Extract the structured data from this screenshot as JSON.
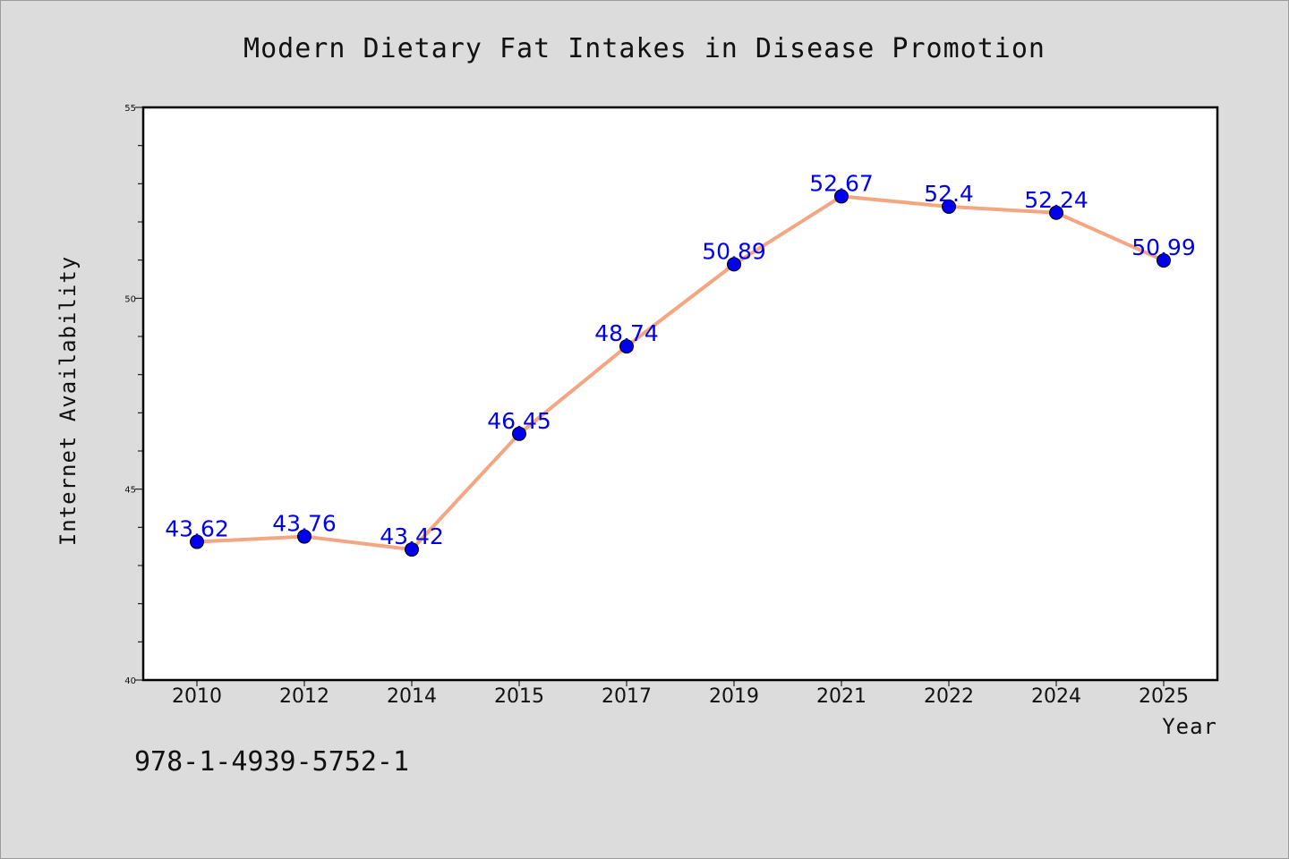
{
  "chart_data": {
    "type": "line",
    "title": "Modern Dietary Fat Intakes in Disease Promotion",
    "xlabel": "Year",
    "ylabel": "Internet Availability",
    "categories": [
      "2010",
      "2012",
      "2014",
      "2015",
      "2017",
      "2019",
      "2021",
      "2022",
      "2024",
      "2025"
    ],
    "series": [
      {
        "values": [
          43.62,
          43.76,
          43.42,
          46.45,
          48.74,
          50.89,
          52.67,
          52.4,
          52.24,
          50.99
        ],
        "labels": [
          "43.62",
          "43.76",
          "43.42",
          "46.45",
          "48.74",
          "50.89",
          "52.67",
          "52.4",
          "52.24",
          "50.99"
        ]
      }
    ],
    "ylim": [
      40,
      55
    ],
    "yticks": [
      40,
      45,
      50,
      55
    ],
    "ytick_labels": [
      "40",
      "45",
      "50",
      "55"
    ],
    "yminor_step": 1,
    "grid": false,
    "line_color": "#f4a582",
    "marker_color": "#0000ee",
    "label_color": "#0000ee"
  },
  "footer": {
    "isbn": "978-1-4939-5752-1"
  }
}
